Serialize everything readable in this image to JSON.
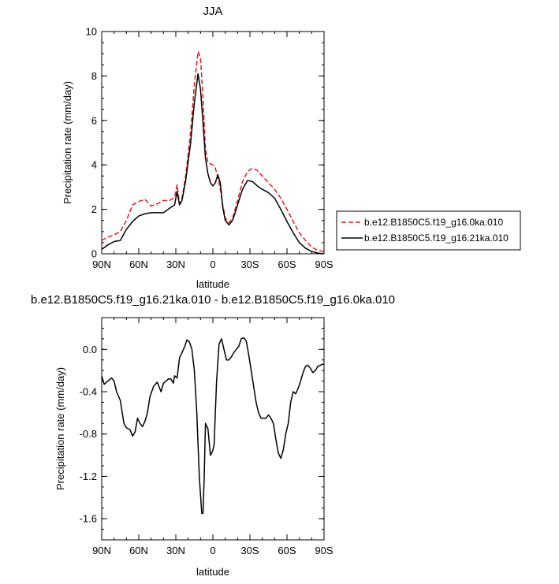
{
  "chart_data": [
    {
      "type": "line",
      "title": "JJA",
      "xlabel": "latitude",
      "ylabel": "Precipitation rate (mm/day)",
      "x_tick_labels": [
        "90N",
        "60N",
        "30N",
        "0",
        "30S",
        "60S",
        "90S"
      ],
      "x_tick_values": [
        90,
        60,
        30,
        0,
        -30,
        -60,
        -90
      ],
      "xlim": [
        90,
        -90
      ],
      "ylim": [
        0,
        10
      ],
      "y_ticks": [
        0,
        2,
        4,
        6,
        8,
        10
      ],
      "y_tick_labels": [
        "0",
        "2",
        "4",
        "6",
        "8",
        "10"
      ],
      "legend_position": "right",
      "series": [
        {
          "name": "b.e12.B1850C5.f19_g16.0ka.010",
          "color": "#e31a1c",
          "dash": "dashed",
          "x": [
            90,
            85,
            80,
            75,
            70,
            65,
            60,
            55,
            50,
            45,
            40,
            35,
            31,
            29,
            27,
            25,
            22,
            18,
            15,
            12,
            10,
            8,
            6,
            4,
            2,
            0,
            -2,
            -4,
            -6,
            -8,
            -10,
            -13,
            -16,
            -20,
            -24,
            -28,
            -32,
            -36,
            -40,
            -45,
            -50,
            -55,
            -60,
            -65,
            -70,
            -75,
            -80,
            -85,
            -90
          ],
          "values": [
            0.6,
            0.75,
            0.85,
            1.0,
            1.5,
            2.2,
            2.35,
            2.45,
            2.15,
            2.25,
            2.4,
            2.4,
            2.55,
            3.1,
            2.25,
            2.5,
            3.5,
            5.5,
            7.6,
            9.1,
            8.8,
            7.0,
            4.7,
            4.1,
            4.05,
            4.0,
            3.85,
            3.45,
            2.9,
            2.2,
            1.6,
            1.4,
            1.6,
            2.4,
            3.25,
            3.7,
            3.85,
            3.75,
            3.5,
            3.2,
            2.9,
            2.5,
            2.0,
            1.45,
            0.95,
            0.6,
            0.3,
            0.15,
            0.1
          ]
        },
        {
          "name": "b.e12.B1850C5.f19_g16.21ka.010",
          "color": "#000000",
          "dash": "solid",
          "x": [
            90,
            85,
            80,
            75,
            70,
            65,
            60,
            55,
            50,
            45,
            40,
            35,
            31,
            29,
            27,
            25,
            22,
            18,
            15,
            12,
            10,
            8,
            6,
            4,
            2,
            0,
            -2,
            -4,
            -6,
            -8,
            -10,
            -13,
            -16,
            -20,
            -24,
            -28,
            -32,
            -36,
            -40,
            -45,
            -50,
            -55,
            -60,
            -65,
            -70,
            -75,
            -80,
            -85,
            -90
          ],
          "values": [
            0.2,
            0.4,
            0.55,
            0.6,
            1.1,
            1.45,
            1.7,
            1.8,
            1.85,
            1.85,
            1.85,
            2.05,
            2.2,
            2.8,
            2.2,
            2.4,
            3.3,
            5.0,
            6.8,
            8.1,
            7.4,
            5.9,
            4.3,
            3.6,
            3.2,
            3.05,
            3.2,
            3.55,
            3.2,
            2.1,
            1.5,
            1.3,
            1.5,
            2.2,
            2.9,
            3.3,
            3.25,
            3.05,
            2.9,
            2.75,
            2.5,
            2.0,
            1.45,
            0.95,
            0.5,
            0.25,
            0.1,
            0.03,
            0.0
          ]
        }
      ]
    },
    {
      "type": "line",
      "title": "b.e12.B1850C5.f19_g16.21ka.010 - b.e12.B1850C5.f19_g16.0ka.010",
      "xlabel": "latitude",
      "ylabel": "Precipitation rate (mm/day)",
      "x_tick_labels": [
        "90N",
        "60N",
        "30N",
        "0",
        "30S",
        "60S",
        "90S"
      ],
      "x_tick_values": [
        90,
        60,
        30,
        0,
        -30,
        -60,
        -90
      ],
      "xlim": [
        90,
        -90
      ],
      "ylim": [
        -1.8,
        0.3
      ],
      "y_ticks": [
        0.0,
        -0.4,
        -0.8,
        -1.2,
        -1.6
      ],
      "y_tick_labels": [
        "0.0",
        "-0.4",
        "-0.8",
        "-1.2",
        "-1.6"
      ],
      "series": [
        {
          "color": "#000000",
          "x": [
            90,
            88,
            85,
            82,
            80,
            78,
            75,
            72,
            70,
            67,
            65,
            63,
            61,
            59,
            57,
            55,
            53,
            51,
            48,
            45,
            42,
            40,
            38,
            36,
            34,
            32,
            31,
            29,
            27,
            25,
            23,
            21,
            19,
            17,
            15,
            13,
            11,
            9,
            8,
            7,
            6,
            4,
            2,
            1,
            0,
            -1,
            -2,
            -3,
            -5,
            -7,
            -9,
            -11,
            -13,
            -15,
            -17,
            -19,
            -21,
            -23,
            -25,
            -27,
            -29,
            -31,
            -33,
            -35,
            -37,
            -39,
            -41,
            -43,
            -45,
            -47,
            -49,
            -51,
            -53,
            -55,
            -57,
            -59,
            -61,
            -63,
            -65,
            -67,
            -69,
            -71,
            -73,
            -75,
            -77,
            -79,
            -81,
            -83,
            -85,
            -87,
            -89,
            -90
          ],
          "values": [
            -0.25,
            -0.33,
            -0.3,
            -0.27,
            -0.3,
            -0.4,
            -0.48,
            -0.7,
            -0.74,
            -0.76,
            -0.82,
            -0.78,
            -0.65,
            -0.7,
            -0.73,
            -0.68,
            -0.6,
            -0.45,
            -0.35,
            -0.31,
            -0.4,
            -0.32,
            -0.3,
            -0.28,
            -0.28,
            -0.32,
            -0.25,
            -0.27,
            -0.08,
            -0.03,
            0.02,
            0.09,
            0.07,
            0.0,
            -0.2,
            -0.6,
            -1.2,
            -1.55,
            -1.55,
            -1.2,
            -0.7,
            -0.75,
            -1.0,
            -0.98,
            -0.95,
            -0.9,
            -0.6,
            -0.3,
            0.05,
            0.1,
            0.0,
            -0.1,
            -0.1,
            -0.07,
            -0.03,
            0.0,
            0.03,
            0.1,
            0.11,
            0.08,
            -0.05,
            -0.2,
            -0.35,
            -0.5,
            -0.6,
            -0.65,
            -0.65,
            -0.65,
            -0.62,
            -0.65,
            -0.7,
            -0.85,
            -0.98,
            -1.03,
            -0.95,
            -0.8,
            -0.7,
            -0.5,
            -0.4,
            -0.42,
            -0.37,
            -0.3,
            -0.22,
            -0.16,
            -0.15,
            -0.18,
            -0.22,
            -0.2,
            -0.16,
            -0.15,
            -0.14,
            -0.14
          ]
        }
      ]
    }
  ]
}
